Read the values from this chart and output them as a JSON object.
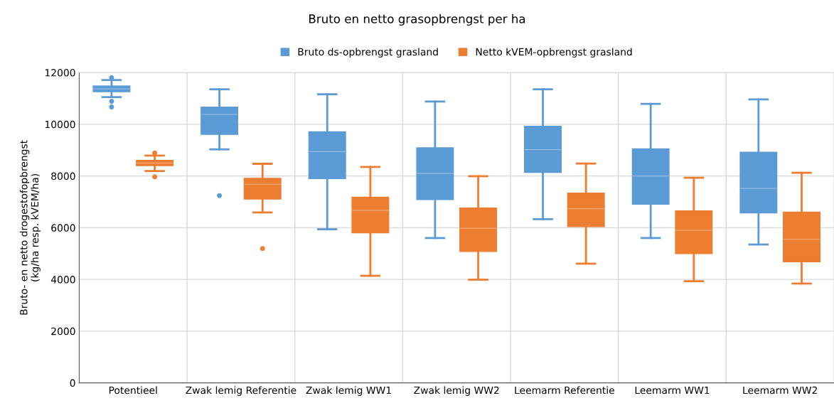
{
  "chart_data": {
    "type": "box",
    "title": "Bruto en netto grasopbrengst per ha",
    "ylabel": "Bruto- en netto drogestofopbrengst\n(kg/ha resp. kVEM/ha)",
    "categories": [
      "Potentieel",
      "Zwak lemig Referentie",
      "Zwak lemig WW1",
      "Zwak lemig WW2",
      "Leemarm Referentie",
      "Leemarm WW1",
      "Leemarm WW2"
    ],
    "ylim": [
      0,
      12000
    ],
    "yticks": [
      0,
      2000,
      4000,
      6000,
      8000,
      10000,
      12000
    ],
    "grid": true,
    "legend": "top",
    "series": [
      {
        "name": "Bruto ds-opbrengst grasland",
        "color": "#5b9bd5",
        "boxes": [
          {
            "low": 11050,
            "q1": 11260,
            "median": 11370,
            "q3": 11480,
            "high": 11710,
            "outliers": [
              11800,
              10890,
              10670
            ]
          },
          {
            "low": 9030,
            "q1": 9610,
            "median": 10380,
            "q3": 10660,
            "high": 11350,
            "outliers": [
              7240
            ]
          },
          {
            "low": 5940,
            "q1": 7900,
            "median": 8940,
            "q3": 9710,
            "high": 11160
          },
          {
            "low": 5600,
            "q1": 7090,
            "median": 8100,
            "q3": 9090,
            "high": 10880
          },
          {
            "low": 6330,
            "q1": 8140,
            "median": 9020,
            "q3": 9920,
            "high": 11350
          },
          {
            "low": 5600,
            "q1": 6910,
            "median": 8000,
            "q3": 9050,
            "high": 10790
          },
          {
            "low": 5350,
            "q1": 6570,
            "median": 7520,
            "q3": 8920,
            "high": 10960
          }
        ]
      },
      {
        "name": "Netto kVEM-opbrengst grasland",
        "color": "#ed7d31",
        "boxes": [
          {
            "low": 8190,
            "q1": 8400,
            "median": 8500,
            "q3": 8600,
            "high": 8790,
            "outliers": [
              8890,
              7970
            ]
          },
          {
            "low": 6590,
            "q1": 7110,
            "median": 7680,
            "q3": 7910,
            "high": 8470,
            "outliers": [
              5190
            ]
          },
          {
            "low": 4140,
            "q1": 5800,
            "median": 6670,
            "q3": 7180,
            "high": 8350
          },
          {
            "low": 3990,
            "q1": 5080,
            "median": 5980,
            "q3": 6760,
            "high": 7990
          },
          {
            "low": 4610,
            "q1": 6040,
            "median": 6730,
            "q3": 7340,
            "high": 8480
          },
          {
            "low": 3930,
            "q1": 5000,
            "median": 5900,
            "q3": 6650,
            "high": 7930
          },
          {
            "low": 3840,
            "q1": 4680,
            "median": 5550,
            "q3": 6600,
            "high": 8120
          }
        ]
      }
    ]
  }
}
